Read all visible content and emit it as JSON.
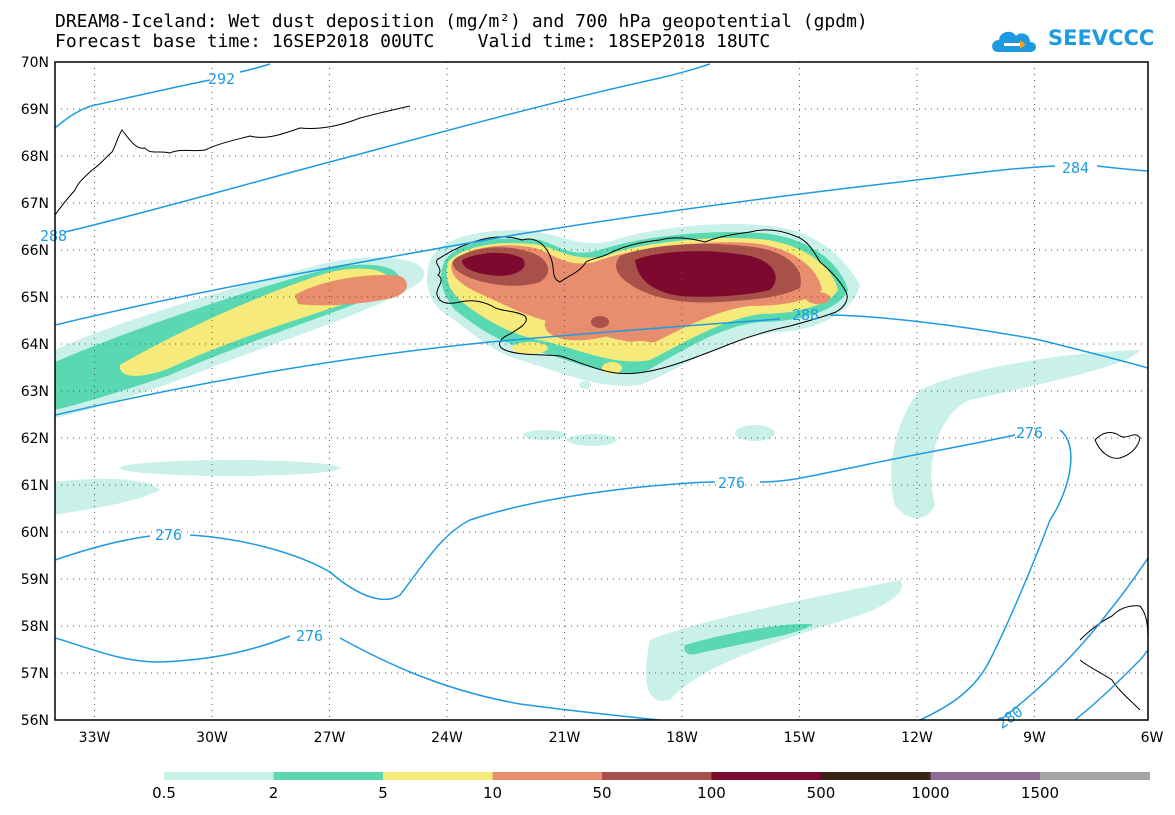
{
  "title_line1": "DREAM8-Iceland: Wet dust deposition (mg/m²) and 700 hPa geopotential (gpdm)",
  "title_line2": "Forecast base time: 16SEP2018 00UTC    Valid time: 18SEP2018 18UTC",
  "logo_text": "SEEVCCC",
  "lat_labels": [
    "70N",
    "69N",
    "68N",
    "67N",
    "66N",
    "65N",
    "64N",
    "63N",
    "62N",
    "61N",
    "60N",
    "59N",
    "58N",
    "57N",
    "56N"
  ],
  "lon_labels": [
    "33W",
    "30W",
    "27W",
    "24W",
    "21W",
    "18W",
    "15W",
    "12W",
    "9W",
    "6W"
  ],
  "contour_labels": {
    "c292": "292",
    "c284": "284",
    "c288a": "288",
    "c288b": "288",
    "c276a": "276",
    "c276b": "276",
    "c276c": "276",
    "c276d": "276",
    "c280": "280"
  },
  "colorbar": {
    "labels": [
      "0.5",
      "2",
      "5",
      "10",
      "50",
      "100",
      "500",
      "1000",
      "1500"
    ],
    "colors": [
      "#c9f1ea",
      "#5ad8b2",
      "#f6ea7a",
      "#e88d6e",
      "#a8504a",
      "#7d0a2e",
      "#3c2317",
      "#8e6c96",
      "#a6a6a6"
    ]
  },
  "colors": {
    "contour": "#1e9be0",
    "coast": "#000000"
  }
}
